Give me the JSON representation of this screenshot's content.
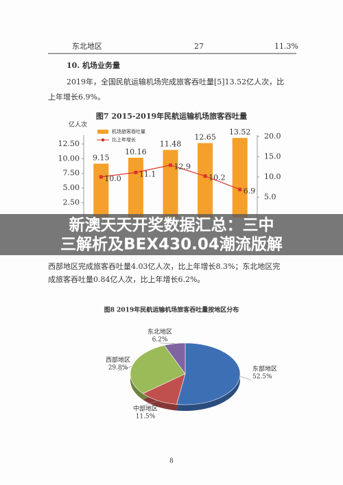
{
  "document": {
    "table_row": [
      "东北地区",
      "27",
      "11.3%"
    ],
    "heading": "10. 机场业务量",
    "paragraph1": [
      "2019年，全国民航运输机场完成旅客吞吐量[5]13.52亿人次，比",
      "上年增长6.9%。"
    ],
    "banner": [
      "新澳天天开奖数据汇总：三中",
      "三解析及BEX430.04潮流版解"
    ],
    "paragraph2": [
      "西部地区完成旅客吞吐量4.03亿人次，比上年增长8.3%；东北地区完",
      "成旅客吞吐量0.84亿人次，比上年增长6.2%。"
    ],
    "page_number": "8"
  },
  "chart_data": [
    {
      "type": "bar_line",
      "title": "图7 2015-2019年民航运输机场旅客吞吐量",
      "y_label": "亿人次",
      "categories": [
        null,
        null,
        null,
        null,
        null
      ],
      "series": [
        {
          "name": "机场旅客吞吐量",
          "color": "#f5a02a",
          "values": [
            9.15,
            10.16,
            11.48,
            12.65,
            13.52
          ]
        },
        {
          "name": "比上年增长",
          "color": "#d9342b",
          "axis": "y2",
          "values": [
            10.0,
            11.1,
            12.9,
            10.2,
            6.9
          ],
          "value_labels": [
            "10.0",
            "11.1",
            "12.9",
            "10.2",
            "6.9"
          ]
        }
      ],
      "ylim": [
        0,
        14
      ],
      "yticks": [
        {
          "value": 2.5,
          "label": "2.50"
        },
        {
          "value": 5,
          "label": "5.00"
        },
        {
          "value": 7.5,
          "label": "7.50"
        },
        {
          "value": 10,
          "label": "10.00"
        },
        {
          "value": 12.5,
          "label": "12.50"
        }
      ],
      "y2lim": [
        0,
        20.3
      ],
      "y2ticks": [
        {
          "value": 5,
          "label": "5.0"
        },
        {
          "value": 10,
          "label": "10.0"
        },
        {
          "value": 15,
          "label": "15.0"
        },
        {
          "value": 20,
          "label": "20.0"
        }
      ]
    },
    {
      "type": "pie",
      "title": "图8 2019年民航运输机场旅客吞吐量按地区分布",
      "categories": [
        "东部地区",
        "中部地区",
        "西部地区",
        "东北地区"
      ],
      "values": [
        52.5,
        11.5,
        29.8,
        6.2
      ],
      "value_labels": [
        "52.5%",
        "11.5%",
        "29.8%",
        "6.2%"
      ],
      "colors": [
        "#3d6fb5",
        "#c0504d",
        "#9bbb59",
        "#8064a2"
      ]
    }
  ]
}
